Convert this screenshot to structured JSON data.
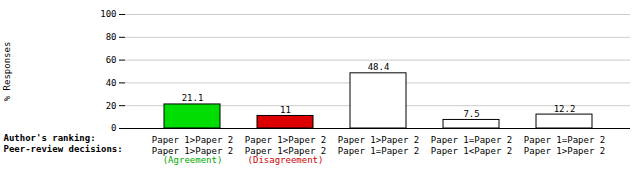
{
  "chart_data": {
    "type": "bar",
    "categories": [
      "Paper 1>Paper 2\nPaper 1>Paper 2",
      "Paper 1>Paper 2\nPaper 1<Paper 2",
      "Paper 1>Paper 2\nPaper 1=Paper 2",
      "Paper 1=Paper 2\nPaper 1<Paper 2",
      "Paper 1=Paper 2\nPaper 1>Paper 2"
    ],
    "values": [
      21.1,
      11,
      48.4,
      7.5,
      12.2
    ],
    "colors": [
      "#00dd00",
      "#dd0000",
      "#ffffff",
      "#ffffff",
      "#ffffff"
    ],
    "ylabel": "% Responses",
    "ylim": [
      0,
      100
    ],
    "yticks": [
      0,
      20,
      40,
      60,
      80,
      100
    ],
    "grid": true,
    "data_labels": true,
    "tick_labels": "y",
    "annotations": [
      {
        "text": "Author's ranking:"
      },
      {
        "text": "Peer-review decisions:"
      },
      {
        "text": "(Agreement)",
        "category": 0,
        "color": "#00aa00"
      },
      {
        "text": "(Disagreement)",
        "category": 1,
        "color": "#cc0000"
      }
    ]
  }
}
